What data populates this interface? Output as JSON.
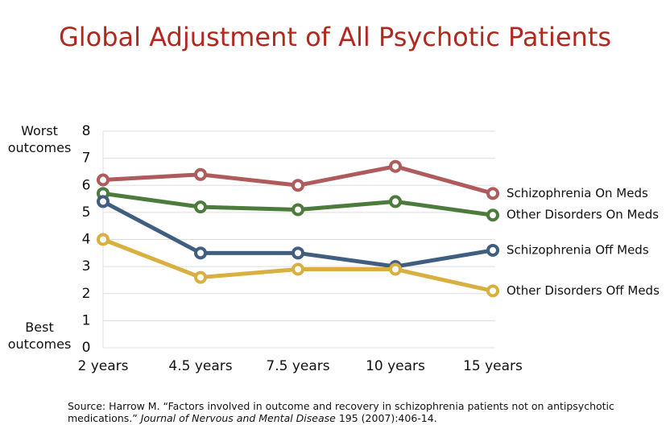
{
  "chart_data": {
    "type": "line",
    "title": "Global Adjustment of All Psychotic Patients",
    "categories": [
      "2 years",
      "4.5 years",
      "7.5 years",
      "10 years",
      "15 years"
    ],
    "series": [
      {
        "name": "Schizophrenia On Meds",
        "color": "#b05b5b",
        "values": [
          6.2,
          6.4,
          6.0,
          6.7,
          5.7
        ]
      },
      {
        "name": "Other Disorders On Meds",
        "color": "#4c7b3b",
        "values": [
          5.7,
          5.2,
          5.1,
          5.4,
          4.9
        ]
      },
      {
        "name": "Schizophrenia Off Meds",
        "color": "#405f80",
        "values": [
          5.4,
          3.5,
          3.5,
          3.0,
          3.6
        ]
      },
      {
        "name": "Other Disorders Off Meds",
        "color": "#d9b040",
        "values": [
          4.0,
          2.6,
          2.9,
          2.9,
          2.1
        ]
      }
    ],
    "ylim": [
      0,
      8
    ],
    "yticks": [
      0,
      1,
      2,
      3,
      4,
      5,
      6,
      7,
      8
    ],
    "grid": true,
    "annotations": [
      "Worst outcomes",
      "Best outcomes"
    ],
    "source": [
      "Source: Harrow M. “Factors involved in outcome and recovery in schizophrenia patients not on antipsychotic medications.”",
      "Journal of Nervous and Mental Disease",
      "195 (2007):406-14."
    ]
  }
}
